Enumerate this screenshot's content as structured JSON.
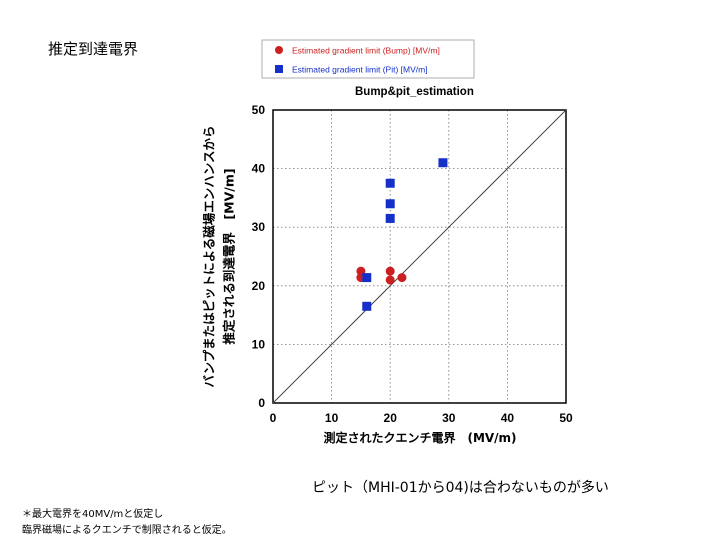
{
  "slide": {
    "title": "推定到達電界",
    "note": "ピット（MHI-01から04)は合わないものが多い",
    "footnotes": [
      "＊最大電界を40MV/mと仮定し",
      "臨界磁場によるクエンチで制限されると仮定。"
    ]
  },
  "chart_data": {
    "type": "scatter",
    "title": "Bump&pit_estimation",
    "xlabel": "測定されたクエンチ電界　(MV/m)",
    "ylabel": [
      "バンプまたはピットによる磁場エンハンスから",
      "推定される到達電界　[MV/m]"
    ],
    "xlim": [
      0,
      50
    ],
    "ylim": [
      0,
      50
    ],
    "xticks": [
      0,
      10,
      20,
      30,
      40,
      50
    ],
    "yticks": [
      0,
      10,
      20,
      30,
      40,
      50
    ],
    "grid": "dotted",
    "legend_position": "top",
    "reference_line": "y = x",
    "series": [
      {
        "name": "Estimated gradient limit (Bump) [MV/m]",
        "marker": "circle",
        "color": "#cc1f1f",
        "points": [
          [
            15,
            22.5
          ],
          [
            15,
            21.4
          ],
          [
            20,
            22.5
          ],
          [
            20,
            21
          ],
          [
            22,
            21.4
          ]
        ]
      },
      {
        "name": "Estimated gradient limit (Pit) [MV/m]",
        "marker": "square",
        "color": "#1530c8",
        "points": [
          [
            16,
            21.4
          ],
          [
            16,
            16.5
          ],
          [
            20,
            37.5
          ],
          [
            20,
            34
          ],
          [
            20,
            31.5
          ],
          [
            29,
            41
          ]
        ]
      }
    ]
  }
}
